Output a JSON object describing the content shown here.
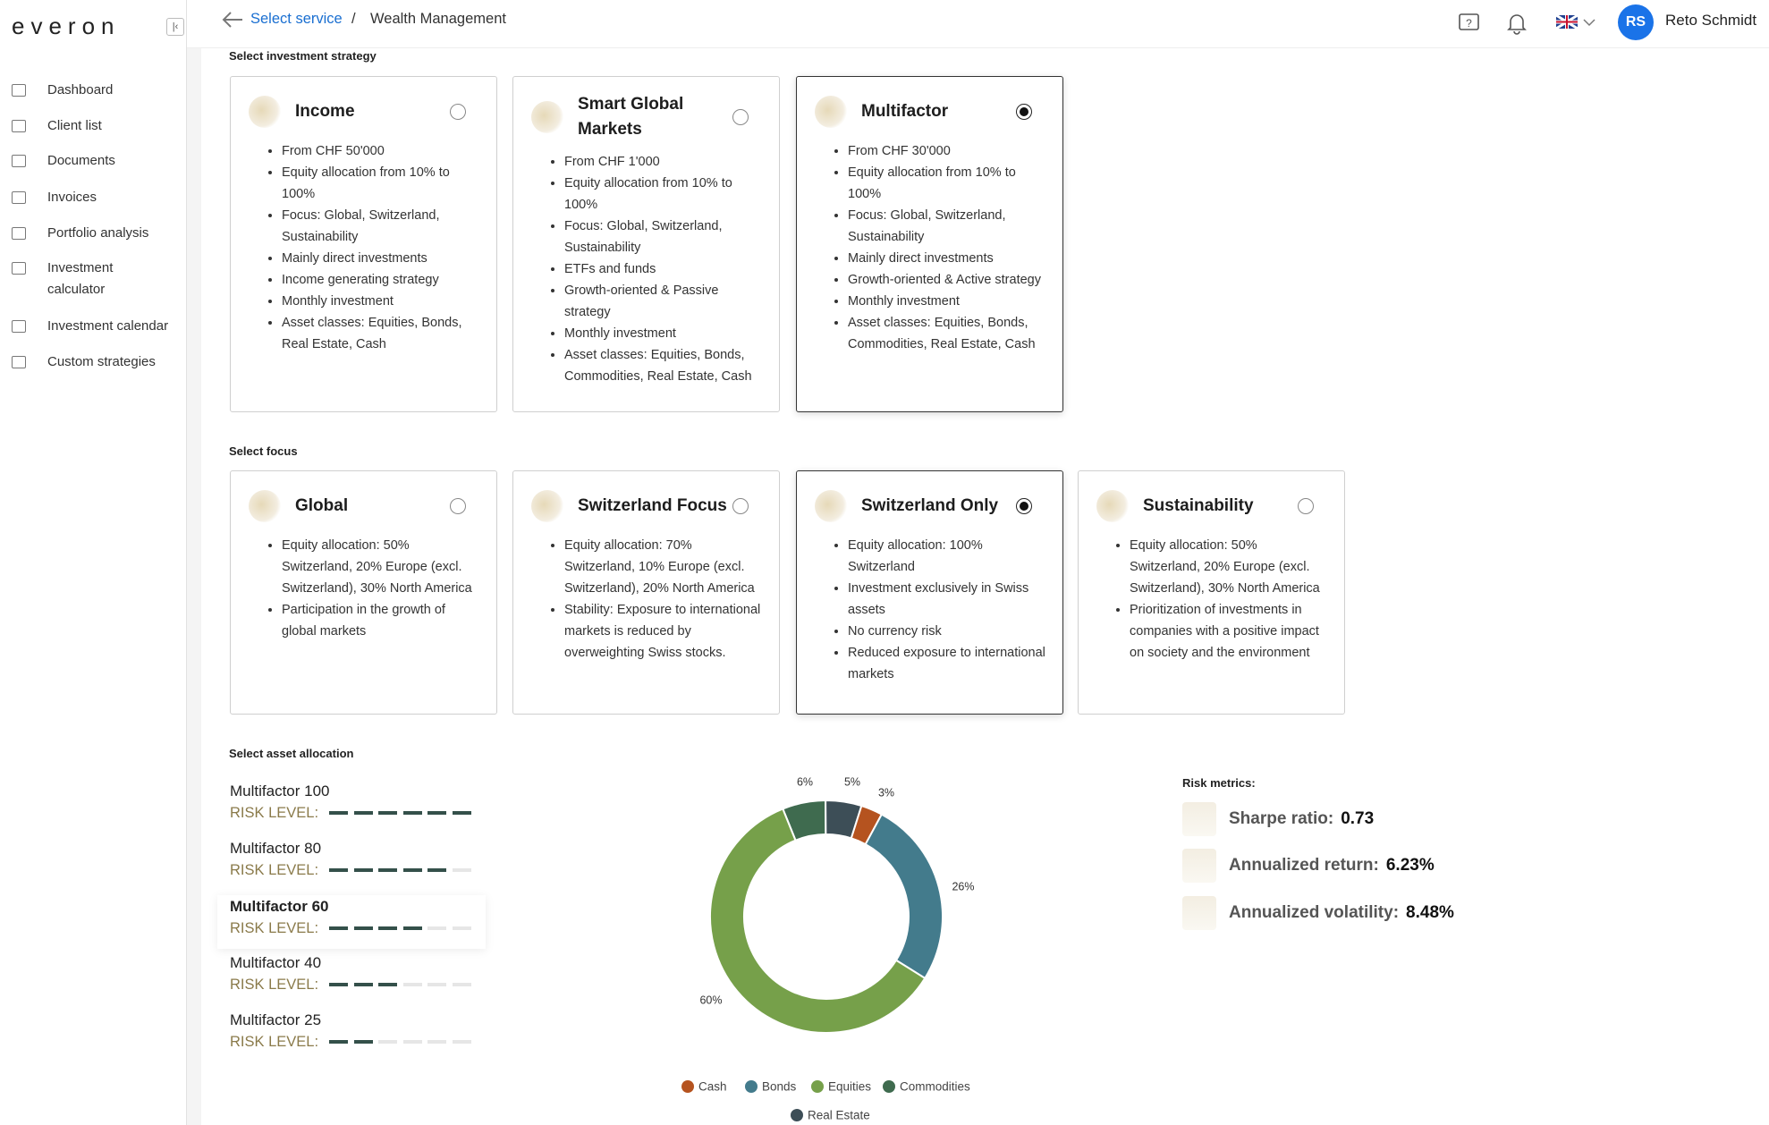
{
  "sidebar": {
    "logo": "everon",
    "nav": [
      "Dashboard",
      "Client list",
      "Documents",
      "Invoices",
      "Portfolio analysis",
      "Investment calculator",
      "Investment calendar",
      "Custom strategies"
    ]
  },
  "header": {
    "breadcrumb_link": "Select service",
    "separator": "/",
    "current": "Wealth Management",
    "avatar_initials": "RS",
    "user_name": "Reto Schmidt"
  },
  "strategy": {
    "heading": "Select investment strategy",
    "cards": [
      {
        "title": "Income",
        "selected": false,
        "bullets": [
          "From CHF 50'000",
          "Equity allocation from 10% to 100%",
          "Focus: Global, Switzerland, Sustainability",
          "Mainly direct investments",
          "Income generating strategy",
          "Monthly investment",
          "Asset classes: Equities, Bonds, Real Estate, Cash"
        ]
      },
      {
        "title": "Smart Global Markets",
        "selected": false,
        "bullets": [
          "From CHF 1'000",
          "Equity allocation from 10% to 100%",
          "Focus: Global, Switzerland, Sustainability",
          "ETFs and funds",
          "Growth-oriented & Passive strategy",
          "Monthly investment",
          "Asset classes: Equities, Bonds, Commodities, Real Estate, Cash"
        ]
      },
      {
        "title": "Multifactor",
        "selected": true,
        "bullets": [
          "From CHF 30'000",
          "Equity allocation from 10% to 100%",
          "Focus: Global, Switzerland, Sustainability",
          "Mainly direct investments",
          "Growth-oriented & Active strategy",
          "Monthly investment",
          "Asset classes: Equities, Bonds, Commodities, Real Estate, Cash"
        ]
      }
    ]
  },
  "focus": {
    "heading": "Select focus",
    "cards": [
      {
        "title": "Global",
        "selected": false,
        "bullets": [
          "Equity allocation: 50% Switzerland, 20% Europe (excl. Switzerland), 30% North America",
          "Participation in the growth of global markets"
        ]
      },
      {
        "title": "Switzerland Focus",
        "selected": false,
        "bullets": [
          "Equity allocation: 70% Switzerland, 10% Europe (excl. Switzerland), 20% North America",
          "Stability: Exposure to international markets is reduced by overweighting Swiss stocks."
        ]
      },
      {
        "title": "Switzerland Only",
        "selected": true,
        "bullets": [
          "Equity allocation: 100% Switzerland",
          "Investment exclusively in Swiss assets",
          "No currency risk",
          "Reduced exposure to international markets"
        ]
      },
      {
        "title": "Sustainability",
        "selected": false,
        "bullets": [
          "Equity allocation: 50% Switzerland, 20% Europe (excl. Switzerland), 30% North America",
          "Prioritization of investments in companies with a positive impact on society and the environment"
        ]
      }
    ]
  },
  "allocation": {
    "heading": "Select asset allocation",
    "risk_label": "RISK LEVEL:",
    "options": [
      {
        "name": "Multifactor 100",
        "risk_level": 6,
        "selected": false
      },
      {
        "name": "Multifactor 80",
        "risk_level": 5,
        "selected": false
      },
      {
        "name": "Multifactor 60",
        "risk_level": 4,
        "selected": true
      },
      {
        "name": "Multifactor 40",
        "risk_level": 3,
        "selected": false
      },
      {
        "name": "Multifactor 25",
        "risk_level": 2,
        "selected": false
      }
    ]
  },
  "chart_data": {
    "type": "pie",
    "donut": true,
    "categories": [
      "Commodities",
      "Real Estate",
      "Cash",
      "Bonds",
      "Equities"
    ],
    "values": [
      6,
      5,
      3,
      26,
      60
    ],
    "value_labels": [
      "6%",
      "5%",
      "3%",
      "26%",
      "60%"
    ],
    "colors": [
      "#3f6b4f",
      "#3d4e57",
      "#b5531f",
      "#437b8c",
      "#76a04a"
    ]
  },
  "risk_metrics": {
    "heading": "Risk metrics:",
    "items": [
      {
        "label": "Sharpe ratio:",
        "value": "0.73"
      },
      {
        "label": "Annualized return:",
        "value": "6.23%"
      },
      {
        "label": "Annualized volatility:",
        "value": "8.48%"
      }
    ]
  }
}
